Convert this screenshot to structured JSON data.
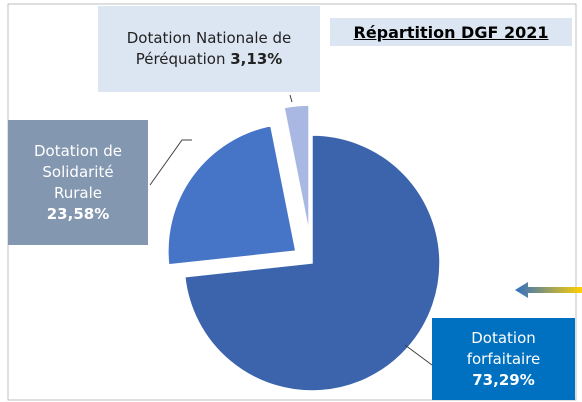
{
  "chart_data": {
    "type": "pie",
    "title": "Répartition DGF 2021",
    "categories": [
      "Dotation forfaitaire",
      "Dotation de Solidarité Rurale",
      "Dotation Nationale de Péréquation"
    ],
    "values": [
      73.29,
      23.58,
      3.13
    ],
    "value_labels": [
      "73,29%",
      "23,58%",
      "3,13%"
    ],
    "colors": [
      "#3b64ad",
      "#4674c6",
      "#a8b8e2"
    ]
  }
}
